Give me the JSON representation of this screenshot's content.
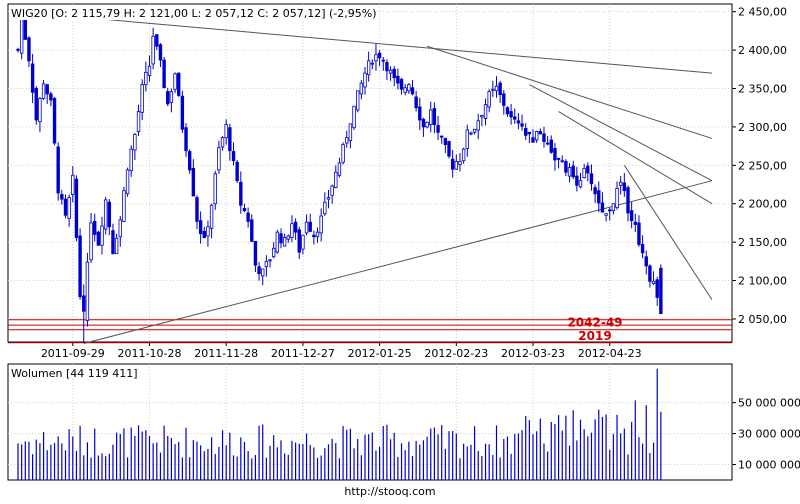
{
  "main_panel": {
    "header": "WIG20 [O: 2 115,79  H: 2 121,00  L: 2 057,12  C: 2 057,12] (-2,95%)",
    "y_ticks": [
      {
        "value": 2450,
        "label": "2 450,00"
      },
      {
        "value": 2400,
        "label": "2 400,00"
      },
      {
        "value": 2350,
        "label": "2 350,00"
      },
      {
        "value": 2300,
        "label": "2 300,00"
      },
      {
        "value": 2250,
        "label": "2 250,00"
      },
      {
        "value": 2200,
        "label": "2 200,00"
      },
      {
        "value": 2150,
        "label": "2 150,00"
      },
      {
        "value": 2100,
        "label": "2 100,00"
      },
      {
        "value": 2050,
        "label": "2 050,00"
      }
    ],
    "x_ticks": [
      {
        "index": 15,
        "label": "2011-09-29"
      },
      {
        "index": 36,
        "label": "2011-10-28"
      },
      {
        "index": 57,
        "label": "2011-11-28"
      },
      {
        "index": 78,
        "label": "2011-12-27"
      },
      {
        "index": 99,
        "label": "2012-01-25"
      },
      {
        "index": 120,
        "label": "2012-02-23"
      },
      {
        "index": 141,
        "label": "2012-03-23"
      },
      {
        "index": 162,
        "label": "2012-04-23"
      }
    ],
    "levels": [
      {
        "label": "2042-49",
        "low": 2042,
        "high": 2049,
        "color": "#cc0000"
      },
      {
        "label": "2019",
        "low": 2019,
        "high": 2036,
        "color": "#cc0000"
      }
    ]
  },
  "volume_panel": {
    "header": "Wolumen [44 119 411]",
    "y_ticks": [
      {
        "value": 10000000,
        "label": "10 000 000"
      },
      {
        "value": 30000000,
        "label": "30 000 000"
      },
      {
        "value": 50000000,
        "label": "50 000 000"
      }
    ]
  },
  "footer": {
    "url": "http://stooq.com"
  },
  "colors": {
    "candle": "#0000cc",
    "trendline": "#555555",
    "level": "#cc0000",
    "volume": "#0000cc"
  },
  "chart_data": [
    {
      "type": "candlestick",
      "title": "WIG20",
      "ylim": [
        2020,
        2460
      ],
      "grid": true,
      "series": [
        {
          "name": "WIG20",
          "points": []
        }
      ],
      "trendlines": [
        {
          "from": {
            "index": 0,
            "value": 2450
          },
          "to": {
            "index": 190,
            "value": 2370
          }
        },
        {
          "from": {
            "index": 18,
            "value": 2018
          },
          "to": {
            "index": 190,
            "value": 2230
          }
        },
        {
          "from": {
            "index": 112,
            "value": 2405
          },
          "to": {
            "index": 190,
            "value": 2285
          }
        },
        {
          "from": {
            "index": 140,
            "value": 2355
          },
          "to": {
            "index": 190,
            "value": 2230
          }
        },
        {
          "from": {
            "index": 148,
            "value": 2320
          },
          "to": {
            "index": 190,
            "value": 2200
          }
        },
        {
          "from": {
            "index": 166,
            "value": 2250
          },
          "to": {
            "index": 190,
            "value": 2075
          }
        }
      ]
    },
    {
      "type": "bar",
      "title": "Wolumen",
      "ylim": [
        0,
        75000000
      ],
      "grid": true,
      "series": [
        {
          "name": "Wolumen",
          "values": []
        }
      ]
    }
  ]
}
